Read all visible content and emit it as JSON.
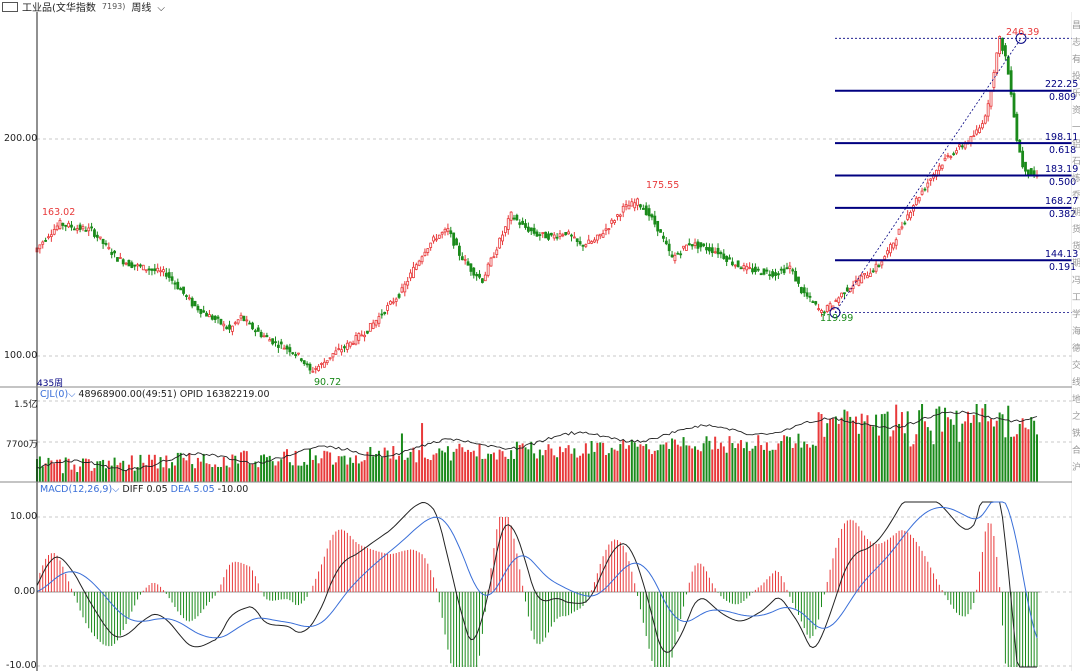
{
  "toolbar": {
    "icon": "window-icon",
    "title": "工业品(文华指数",
    "code": "7193)",
    "period": "周线"
  },
  "colors": {
    "up": "#e8393a",
    "down": "#1a8a1a",
    "fib": "#000080",
    "grid": "#c8c8c8",
    "axis": "#222222",
    "price_label_red": "#e8393a",
    "price_label_green": "#1a8a1a",
    "ma": "#222222",
    "dea": "#3a6fd8"
  },
  "price_panel": {
    "bars_label": "435周",
    "y_ticks": [
      "200.00",
      "100.00"
    ],
    "labels": {
      "high_left": "163.02",
      "low1": "90.72",
      "high_mid": "175.55",
      "low2": "119.99",
      "peak": "246.39"
    }
  },
  "fib": [
    {
      "price": "222.25",
      "ratio": "0.809"
    },
    {
      "price": "198.11",
      "ratio": "0.618"
    },
    {
      "price": "183.19",
      "ratio": "0.500"
    },
    {
      "price": "168.27",
      "ratio": "0.382"
    },
    {
      "price": "144.13",
      "ratio": "0.191"
    }
  ],
  "volume_panel": {
    "name": "CJL(0)",
    "values": "48968900.00(49:51)",
    "opid": "OPID 16382219.00",
    "y_ticks": [
      "1.5亿",
      "7700万"
    ]
  },
  "macd_panel": {
    "name": "MACD(12,26,9)",
    "diff": "DIFF 0.05",
    "dea": "DEA 5.05",
    "macd": "-10.00",
    "y_ticks": [
      "10.00",
      "0.00",
      "-10.00"
    ]
  },
  "right_strip": "昌志有投乐资一铝石炼乔期货货期冯工学海德交线地之铁合沪",
  "chart_data": [
    {
      "type": "candlestick",
      "title": "工业品(文华指数 7193)",
      "period": "周线",
      "bars": 435,
      "ylim": [
        90,
        250
      ],
      "y_ticks": [
        100,
        200
      ],
      "annotations": [
        {
          "text": "163.02",
          "value": 163.02
        },
        {
          "text": "90.72",
          "value": 90.72
        },
        {
          "text": "175.55",
          "value": 175.55
        },
        {
          "text": "119.99",
          "value": 119.99
        },
        {
          "text": "246.39",
          "value": 246.39
        }
      ],
      "fibonacci_levels": [
        {
          "price": 246.39,
          "ratio": 1.0
        },
        {
          "price": 222.25,
          "ratio": 0.809
        },
        {
          "price": 198.11,
          "ratio": 0.618
        },
        {
          "price": 183.19,
          "ratio": 0.5
        },
        {
          "price": 168.27,
          "ratio": 0.382
        },
        {
          "price": 144.13,
          "ratio": 0.191
        },
        {
          "price": 119.99,
          "ratio": 0.0
        }
      ],
      "close_path": [
        [
          0,
          148
        ],
        [
          10,
          156
        ],
        [
          18,
          161
        ],
        [
          30,
          159
        ],
        [
          40,
          158
        ],
        [
          48,
          152
        ],
        [
          58,
          145
        ],
        [
          68,
          142
        ],
        [
          80,
          140
        ],
        [
          92,
          138
        ],
        [
          100,
          132
        ],
        [
          110,
          124
        ],
        [
          118,
          120
        ],
        [
          128,
          116
        ],
        [
          136,
          112
        ],
        [
          144,
          118
        ],
        [
          150,
          114
        ],
        [
          158,
          110
        ],
        [
          168,
          106
        ],
        [
          178,
          103
        ],
        [
          186,
          99
        ],
        [
          192,
          93
        ],
        [
          200,
          96
        ],
        [
          208,
          101
        ],
        [
          216,
          104
        ],
        [
          224,
          108
        ],
        [
          232,
          112
        ],
        [
          240,
          118
        ],
        [
          248,
          124
        ],
        [
          256,
          130
        ],
        [
          264,
          140
        ],
        [
          272,
          149
        ],
        [
          280,
          155
        ],
        [
          288,
          158
        ],
        [
          296,
          147
        ],
        [
          304,
          140
        ],
        [
          312,
          135
        ],
        [
          322,
          150
        ],
        [
          332,
          165
        ],
        [
          340,
          160
        ],
        [
          350,
          156
        ],
        [
          360,
          155
        ],
        [
          370,
          157
        ],
        [
          380,
          151
        ],
        [
          390,
          153
        ],
        [
          400,
          160
        ],
        [
          410,
          168
        ],
        [
          420,
          171
        ],
        [
          428,
          165
        ],
        [
          434,
          159
        ],
        [
          444,
          145
        ],
        [
          456,
          152
        ],
        [
          466,
          150
        ],
        [
          476,
          148
        ],
        [
          486,
          143
        ],
        [
          496,
          140
        ],
        [
          506,
          139
        ],
        [
          516,
          138
        ],
        [
          526,
          141
        ],
        [
          534,
          130
        ],
        [
          540,
          126
        ],
        [
          548,
          120
        ],
        [
          556,
          124
        ],
        [
          564,
          130
        ],
        [
          572,
          134
        ],
        [
          580,
          138
        ],
        [
          588,
          142
        ],
        [
          596,
          150
        ],
        [
          604,
          160
        ],
        [
          612,
          170
        ],
        [
          620,
          178
        ],
        [
          628,
          186
        ],
        [
          636,
          192
        ],
        [
          644,
          196
        ],
        [
          652,
          200
        ],
        [
          658,
          205
        ],
        [
          664,
          215
        ],
        [
          668,
          232
        ],
        [
          672,
          246
        ],
        [
          676,
          238
        ],
        [
          680,
          222
        ],
        [
          684,
          200
        ],
        [
          688,
          188
        ],
        [
          692,
          185
        ],
        [
          696,
          183
        ]
      ]
    },
    {
      "type": "bar",
      "title": "CJL(0)",
      "y_ticks": [
        "7700万",
        "1.5亿"
      ],
      "series": [
        {
          "name": "OPID",
          "values_desc": "line"
        }
      ]
    },
    {
      "type": "line",
      "title": "MACD(12,26,9)",
      "ylim": [
        -10,
        12
      ],
      "y_ticks": [
        10,
        0,
        -10
      ],
      "series": [
        {
          "name": "DIFF",
          "last": 0.05
        },
        {
          "name": "DEA",
          "last": 5.05
        }
      ],
      "macd_last": -10.0
    }
  ]
}
